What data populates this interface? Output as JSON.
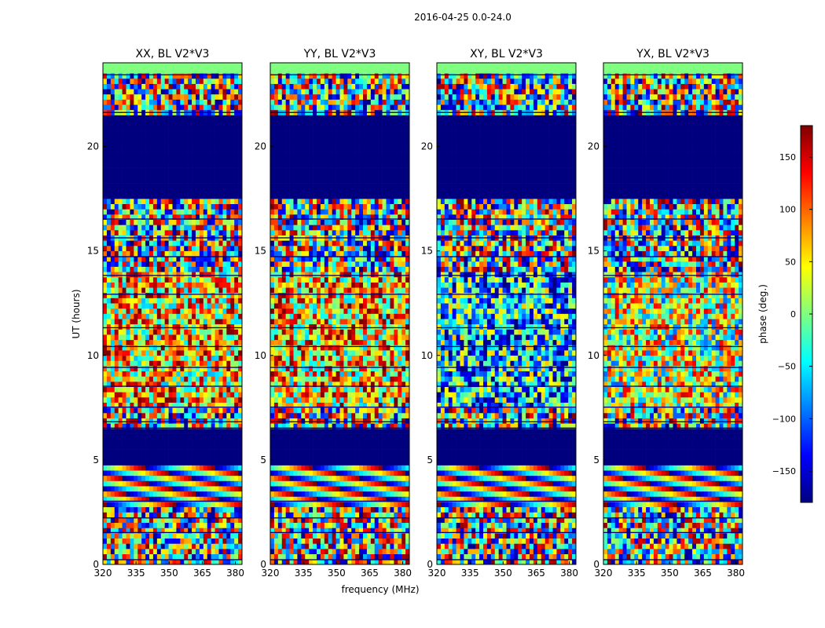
{
  "figure": {
    "suptitle": "2016-04-25 0.0-24.0",
    "xlabel": "frequency (MHz)",
    "ylabel": "UT (hours)"
  },
  "colorbar": {
    "label": "phase (deg.)",
    "ticks": [
      "150",
      "100",
      "50",
      "0",
      "−50",
      "−100",
      "−150"
    ],
    "tick_values": [
      150,
      100,
      50,
      0,
      -50,
      -100,
      -150
    ],
    "range": [
      -180,
      180
    ],
    "colormap": "jet",
    "colors": [
      "#00007f",
      "#0000ff",
      "#007fff",
      "#00ffff",
      "#7fff7f",
      "#ffff00",
      "#ff7f00",
      "#ff0000",
      "#7f0000"
    ]
  },
  "chart_data": [
    {
      "type": "heatmap",
      "title": "XX, BL V2*V3",
      "xlabel": "frequency (MHz)",
      "ylabel": "UT (hours)",
      "xlim": [
        320,
        383
      ],
      "ylim": [
        0,
        24
      ],
      "xticks": [
        "320",
        "335",
        "350",
        "365",
        "380"
      ],
      "xtick_values": [
        320,
        335,
        350,
        365,
        380
      ],
      "yticks": [
        "0",
        "5",
        "10",
        "15",
        "20"
      ],
      "ytick_values": [
        0,
        5,
        10,
        15,
        20
      ],
      "zlabel": "phase (deg.)",
      "zlim": [
        -180,
        180
      ]
    },
    {
      "type": "heatmap",
      "title": "YY, BL V2*V3",
      "xlabel": "frequency (MHz)",
      "ylabel": "UT (hours)",
      "xlim": [
        320,
        383
      ],
      "ylim": [
        0,
        24
      ],
      "xticks": [
        "320",
        "335",
        "350",
        "365",
        "380"
      ],
      "xtick_values": [
        320,
        335,
        350,
        365,
        380
      ],
      "yticks": [
        "0",
        "5",
        "10",
        "15",
        "20"
      ],
      "ytick_values": [
        0,
        5,
        10,
        15,
        20
      ],
      "zlabel": "phase (deg.)",
      "zlim": [
        -180,
        180
      ]
    },
    {
      "type": "heatmap",
      "title": "XY, BL V2*V3",
      "xlabel": "frequency (MHz)",
      "ylabel": "UT (hours)",
      "xlim": [
        320,
        383
      ],
      "ylim": [
        0,
        24
      ],
      "xticks": [
        "320",
        "335",
        "350",
        "365",
        "380"
      ],
      "xtick_values": [
        320,
        335,
        350,
        365,
        380
      ],
      "yticks": [
        "0",
        "5",
        "10",
        "15",
        "20"
      ],
      "ytick_values": [
        0,
        5,
        10,
        15,
        20
      ],
      "zlabel": "phase (deg.)",
      "zlim": [
        -180,
        180
      ]
    },
    {
      "type": "heatmap",
      "title": "YX, BL V2*V3",
      "xlabel": "frequency (MHz)",
      "ylabel": "UT (hours)",
      "xlim": [
        320,
        383
      ],
      "ylim": [
        0,
        24
      ],
      "xticks": [
        "320",
        "335",
        "350",
        "365",
        "380"
      ],
      "xtick_values": [
        320,
        335,
        350,
        365,
        380
      ],
      "yticks": [
        "0",
        "5",
        "10",
        "15",
        "20"
      ],
      "ytick_values": [
        0,
        5,
        10,
        15,
        20
      ],
      "zlabel": "phase (deg.)",
      "zlim": [
        -180,
        180
      ]
    }
  ]
}
